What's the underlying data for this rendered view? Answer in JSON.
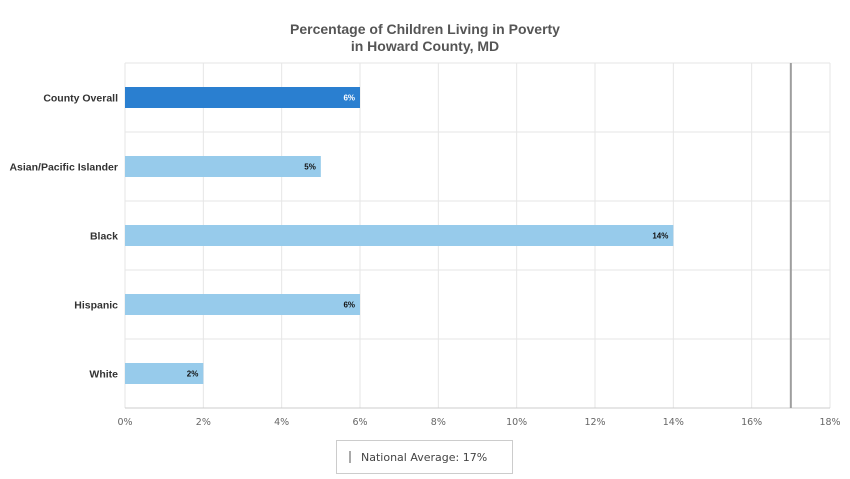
{
  "chart_data": {
    "type": "bar",
    "orientation": "horizontal",
    "title": "Percentage of Children Living in Poverty",
    "subtitle": "in Howard County, MD",
    "categories": [
      "County Overall",
      "Asian/Pacific Islander",
      "Black",
      "Hispanic",
      "White"
    ],
    "values": [
      6,
      5,
      14,
      6,
      2
    ],
    "value_labels": [
      "6%",
      "5%",
      "14%",
      "6%",
      "2%"
    ],
    "highlight_index": 0,
    "xlim": [
      0,
      18
    ],
    "xticks": [
      0,
      2,
      4,
      6,
      8,
      10,
      12,
      14,
      16,
      18
    ],
    "xtick_labels": [
      "0%",
      "2%",
      "4%",
      "6%",
      "8%",
      "10%",
      "12%",
      "14%",
      "16%",
      "18%"
    ],
    "grid": true,
    "reference_line": {
      "value": 17,
      "label": "National Average: 17%"
    },
    "legend_position": "bottom-center",
    "colors": {
      "highlight": "#2a7fd0",
      "bar": "#97cbeb",
      "reference_line": "#9e9e9e",
      "grid": "#e6e6e6"
    }
  }
}
